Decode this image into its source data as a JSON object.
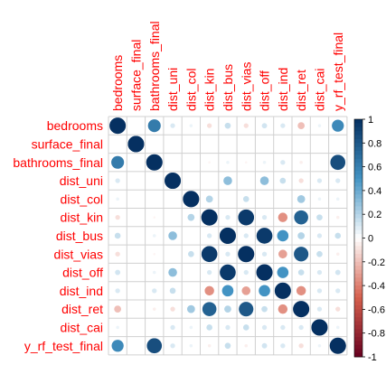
{
  "chart_data": {
    "type": "heatmap",
    "style": "corrplot-circles",
    "variables": [
      "bedrooms",
      "surface_final",
      "bathrooms_final",
      "dist_uni",
      "dist_col",
      "dist_kin",
      "dist_bus",
      "dist_vias",
      "dist_off",
      "dist_ind",
      "dist_ret",
      "dist_cai",
      "y_rf_test_final"
    ],
    "matrix": [
      [
        1.0,
        0.0,
        0.62,
        0.1,
        0.05,
        -0.1,
        0.15,
        -0.1,
        0.12,
        0.1,
        -0.2,
        0.05,
        0.55
      ],
      [
        0.0,
        1.0,
        0.0,
        0.0,
        0.0,
        0.0,
        0.0,
        0.0,
        0.0,
        0.0,
        0.0,
        0.0,
        0.0
      ],
      [
        0.62,
        0.0,
        1.0,
        0.0,
        0.0,
        -0.03,
        0.05,
        -0.03,
        0.05,
        0.1,
        -0.05,
        0.0,
        0.85
      ],
      [
        0.1,
        0.0,
        0.0,
        1.0,
        0.0,
        0.0,
        0.3,
        0.0,
        0.3,
        0.15,
        -0.1,
        0.1,
        0.1
      ],
      [
        0.05,
        0.0,
        0.0,
        0.0,
        1.0,
        0.2,
        0.0,
        0.15,
        0.0,
        0.0,
        0.25,
        0.05,
        0.05
      ],
      [
        -0.1,
        0.0,
        -0.03,
        0.0,
        0.2,
        1.0,
        0.1,
        0.95,
        0.1,
        -0.35,
        0.75,
        0.15,
        -0.05
      ],
      [
        0.15,
        0.0,
        0.05,
        0.3,
        0.0,
        0.1,
        1.0,
        0.1,
        0.95,
        0.5,
        0.2,
        0.1,
        0.15
      ],
      [
        -0.1,
        0.0,
        -0.03,
        0.0,
        0.15,
        0.95,
        0.1,
        1.0,
        0.1,
        -0.3,
        0.8,
        0.15,
        -0.05
      ],
      [
        0.12,
        0.0,
        0.05,
        0.3,
        0.0,
        0.1,
        0.95,
        0.1,
        1.0,
        0.5,
        0.15,
        0.1,
        0.12
      ],
      [
        0.1,
        0.0,
        0.1,
        0.15,
        0.0,
        -0.35,
        0.5,
        -0.3,
        0.5,
        1.0,
        -0.35,
        0.1,
        0.1
      ],
      [
        -0.2,
        0.0,
        -0.05,
        -0.1,
        0.25,
        0.75,
        0.2,
        0.8,
        0.15,
        -0.35,
        1.0,
        0.1,
        -0.1
      ],
      [
        0.05,
        0.0,
        0.0,
        0.1,
        0.05,
        0.15,
        0.1,
        0.15,
        0.1,
        0.1,
        0.1,
        1.0,
        0.05
      ],
      [
        0.55,
        0.0,
        0.85,
        0.1,
        0.05,
        -0.05,
        0.15,
        -0.05,
        0.12,
        0.1,
        -0.1,
        0.05,
        1.0
      ]
    ],
    "range": [
      -1,
      1
    ],
    "colorbar_ticks": [
      "1",
      "0.8",
      "0.6",
      "0.4",
      "0.2",
      "0",
      "-0.2",
      "-0.4",
      "-0.6",
      "-0.8",
      "-1"
    ],
    "colors": {
      "negative_end": "#67001f",
      "neg_mid": "#d6604d",
      "zero": "#ffffff",
      "pos_mid": "#4393c3",
      "positive_end": "#053061",
      "label": "#ff0000",
      "grid": "#d0d0d0"
    },
    "legend_placement": "right"
  }
}
